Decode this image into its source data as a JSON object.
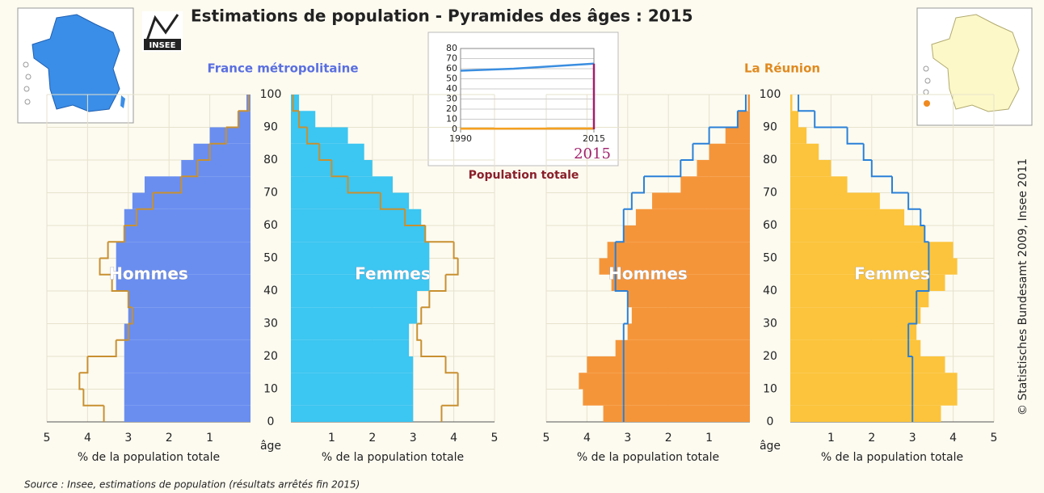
{
  "title": "Estimations de population - Pyramides des âges : 2015",
  "logo": "INSEE",
  "source": "Source : Insee, estimations de population (résultats arrêtés fin 2015)",
  "copyright": "© Statistisches Bundesamt 2009, Insee 2011",
  "chart_data": [
    {
      "type": "pyramid",
      "title": "France métropolitaine",
      "title_color": "#5a6fe0",
      "age_label": "âge",
      "x_label": "% de la population totale",
      "age_groups": [
        0,
        5,
        10,
        15,
        20,
        25,
        30,
        35,
        40,
        45,
        50,
        55,
        60,
        65,
        70,
        75,
        80,
        85,
        90,
        95,
        100
      ],
      "ylim": [
        0,
        100
      ],
      "yticks": [
        0,
        10,
        20,
        30,
        40,
        50,
        60,
        70,
        80,
        90,
        100
      ],
      "xlim": [
        0,
        5
      ],
      "xticks": [
        1,
        2,
        3,
        4,
        5
      ],
      "grid": true,
      "outline_color": "#2a80d8",
      "series": [
        {
          "name": "Hommes",
          "color": "#6a8ef0",
          "values": [
            3.1,
            3.1,
            3.1,
            3.1,
            3.1,
            3.1,
            3.0,
            3.0,
            3.3,
            3.3,
            3.3,
            3.1,
            3.1,
            2.9,
            2.6,
            1.7,
            1.4,
            1.0,
            0.3,
            0.1
          ]
        },
        {
          "name": "Femmes",
          "color": "#3cc6f2",
          "values": [
            3.0,
            3.0,
            3.0,
            3.0,
            2.9,
            2.9,
            3.1,
            3.1,
            3.4,
            3.4,
            3.4,
            3.3,
            3.2,
            2.9,
            2.5,
            2.0,
            1.8,
            1.4,
            0.6,
            0.2
          ]
        }
      ]
    },
    {
      "type": "pyramid",
      "title": "La Réunion",
      "title_color": "#e08a20",
      "age_label": "âge",
      "x_label": "% de la population totale",
      "age_groups": [
        0,
        5,
        10,
        15,
        20,
        25,
        30,
        35,
        40,
        45,
        50,
        55,
        60,
        65,
        70,
        75,
        80,
        85,
        90,
        95,
        100
      ],
      "ylim": [
        0,
        100
      ],
      "yticks": [
        0,
        10,
        20,
        30,
        40,
        50,
        60,
        70,
        80,
        90,
        100
      ],
      "xlim": [
        0,
        5
      ],
      "xticks": [
        1,
        2,
        3,
        4,
        5
      ],
      "grid": true,
      "outline_color": "#c89030",
      "series": [
        {
          "name": "Hommes",
          "color": "#f5953a",
          "values": [
            3.6,
            4.1,
            4.2,
            4.0,
            3.3,
            3.0,
            2.9,
            3.0,
            3.4,
            3.7,
            3.5,
            3.1,
            2.8,
            2.4,
            1.7,
            1.3,
            1.0,
            0.6,
            0.3,
            0.05
          ]
        },
        {
          "name": "Femmes",
          "color": "#fcc43c",
          "values": [
            3.7,
            4.1,
            4.1,
            3.8,
            3.2,
            3.1,
            3.2,
            3.4,
            3.8,
            4.1,
            4.0,
            3.3,
            2.8,
            2.2,
            1.4,
            1.0,
            0.7,
            0.4,
            0.2,
            0.05
          ]
        }
      ]
    },
    {
      "type": "line",
      "title": "Population totale",
      "title_color": "#8a1f2a",
      "x": [
        1990,
        2000,
        2015
      ],
      "xlim": [
        1990,
        2015
      ],
      "xticks": [
        1990,
        2015
      ],
      "ylim": [
        0,
        80
      ],
      "yticks": [
        0,
        10,
        20,
        30,
        40,
        50,
        60,
        70,
        80
      ],
      "grid": true,
      "marker": 2015,
      "marker_color": "#a0206a",
      "series": [
        {
          "color": "#3a8ee0",
          "values": [
            58,
            60,
            65
          ]
        },
        {
          "color": "#f5a020",
          "values": [
            0.6,
            0.7,
            0.8
          ]
        }
      ]
    }
  ]
}
